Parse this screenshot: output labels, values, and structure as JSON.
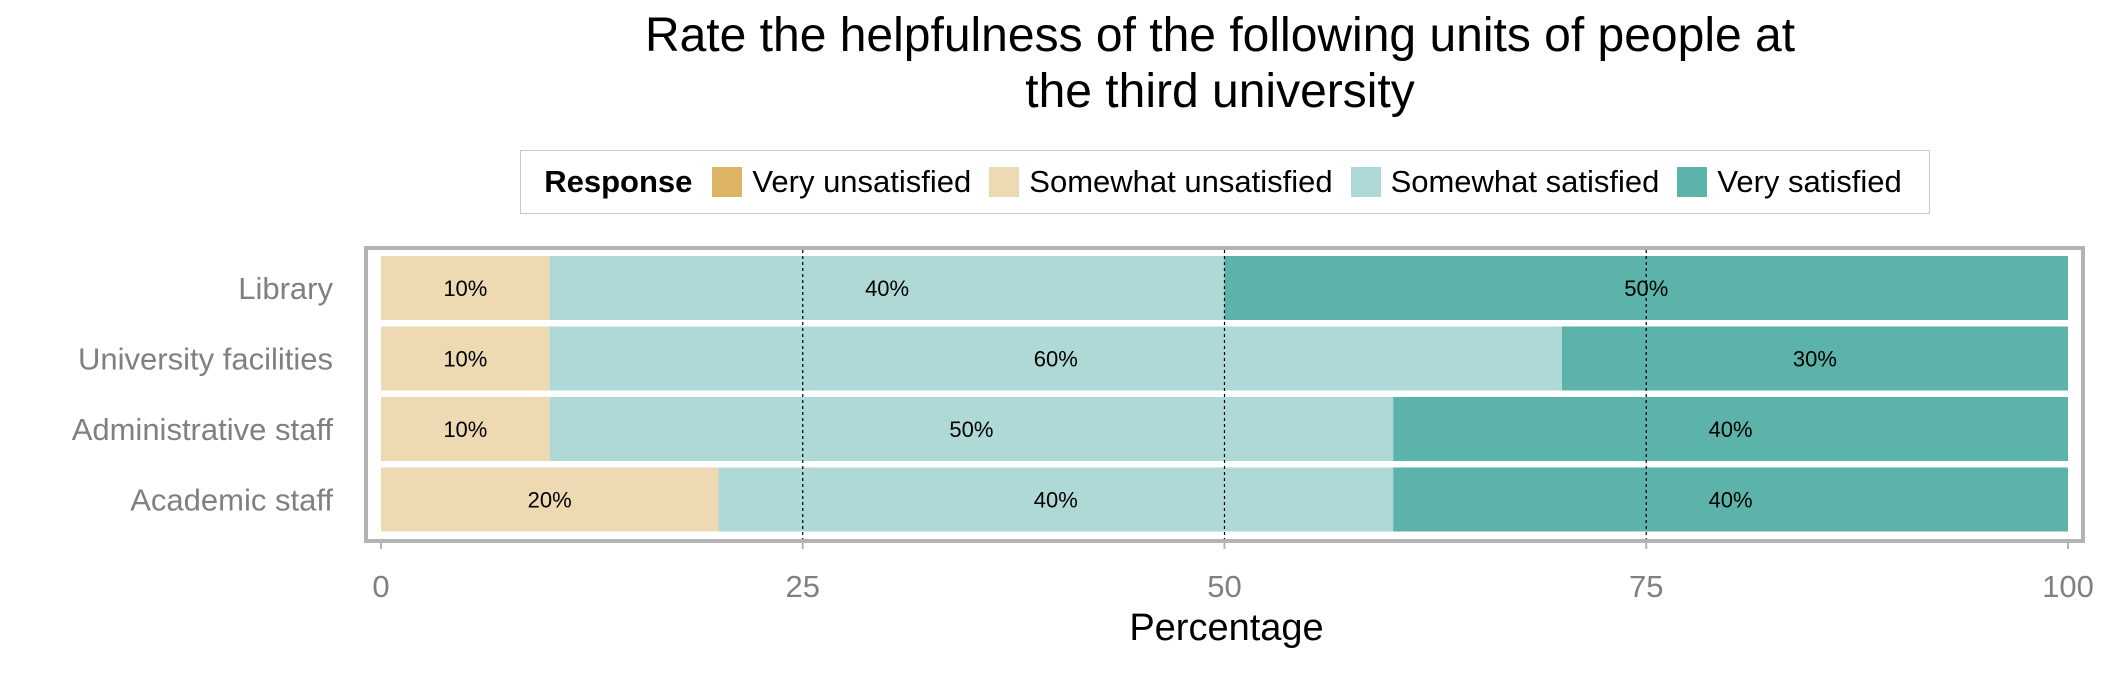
{
  "chart_data": {
    "type": "bar",
    "orientation": "horizontal",
    "stacked": true,
    "title": "Rate the helpfulness of the following units of people at the third university",
    "title_lines": [
      "Rate the helpfulness of the following units of people at",
      "the third university"
    ],
    "xlabel": "Percentage",
    "ylabel": "",
    "xlim": [
      0,
      100
    ],
    "xticks": [
      0,
      25,
      50,
      75,
      100
    ],
    "grid": "dashed vertical lines at 25, 50, 75",
    "legend_title": "Response",
    "legend_position": "top",
    "categories": [
      "Library",
      "University facilities",
      "Administrative staff",
      "Academic staff"
    ],
    "series": [
      {
        "name": "Very unsatisfied",
        "color": "#DDB464",
        "values": [
          0,
          0,
          0,
          0
        ],
        "labels": [
          "",
          "",
          "",
          ""
        ]
      },
      {
        "name": "Somewhat unsatisfied",
        "color": "#EDD9B2",
        "values": [
          10,
          10,
          10,
          20
        ],
        "labels": [
          "10%",
          "10%",
          "10%",
          "20%"
        ]
      },
      {
        "name": "Somewhat satisfied",
        "color": "#AED9D6",
        "values": [
          40,
          60,
          50,
          40
        ],
        "labels": [
          "40%",
          "60%",
          "50%",
          "40%"
        ]
      },
      {
        "name": "Very satisfied",
        "color": "#5BB3AA",
        "values": [
          50,
          30,
          40,
          40
        ],
        "labels": [
          "50%",
          "30%",
          "40%",
          "40%"
        ]
      }
    ]
  }
}
